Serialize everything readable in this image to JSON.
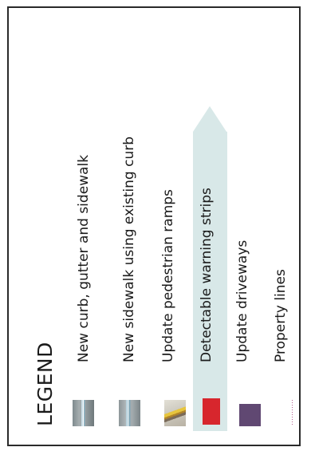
{
  "legend": {
    "title": "LEGEND",
    "items": [
      {
        "label": "New curb, gutter and sidewalk",
        "symbol": "curb-gutter-sidewalk-photo-swatch"
      },
      {
        "label": "New sidewalk using existing curb",
        "symbol": "sidewalk-existing-curb-photo-swatch"
      },
      {
        "label": "Update pedestrian ramps",
        "symbol": "pedestrian-ramp-photo-swatch"
      },
      {
        "label": "Detectable warning strips",
        "symbol": "red-square",
        "color": "#d7262d",
        "highlighted": true
      },
      {
        "label": "Update driveways",
        "symbol": "purple-square",
        "color": "#604872"
      },
      {
        "label": "Property lines",
        "symbol": "dotted-line",
        "color": "#b05a8c"
      }
    ]
  },
  "colors": {
    "highlight": "#d8e8e8",
    "border": "#2a2a2a"
  }
}
